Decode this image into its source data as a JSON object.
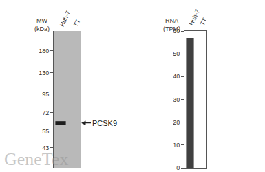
{
  "chart_data": [
    {
      "type": "blot",
      "categories": [
        "Huh-7",
        "TT"
      ],
      "values": [
        62,
        null
      ],
      "y_label": "MW\n(kDa)",
      "ylim": [
        32,
        240
      ],
      "yticks": [
        43,
        55,
        72,
        95,
        130,
        180
      ],
      "log": "y",
      "color": "#1e1e1e",
      "annotations": [
        {
          "text": "PCSK9",
          "y": 62
        },
        {
          "text": "GeneTex"
        }
      ]
    },
    {
      "type": "bar",
      "categories": [
        "Huh-7",
        "TT"
      ],
      "values": [
        57,
        0
      ],
      "y_label": "RNA\n(TPM)",
      "ylim": [
        0,
        60
      ],
      "yticks": [
        0,
        10,
        20,
        30,
        40,
        50,
        60
      ],
      "color": "#404040"
    }
  ]
}
